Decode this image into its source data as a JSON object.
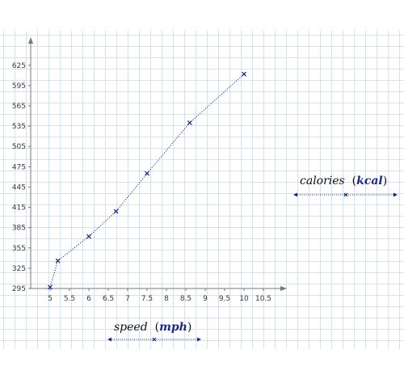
{
  "chart_data": {
    "type": "line",
    "x": [
      5,
      5.2,
      6,
      6.7,
      7.5,
      8.6,
      10
    ],
    "y": [
      297,
      336,
      372,
      409,
      465,
      540,
      612
    ],
    "x_ticks": [
      "5",
      "5.5",
      "6",
      "6.5",
      "7",
      "7.5",
      "8",
      "8.5",
      "9",
      "9.5",
      "10",
      "10.5"
    ],
    "y_ticks": [
      "295",
      "325",
      "355",
      "385",
      "415",
      "445",
      "475",
      "505",
      "535",
      "565",
      "595",
      "625"
    ],
    "xlim": [
      4.6,
      11.1
    ],
    "ylim": [
      285,
      655
    ],
    "grid": true,
    "line_style": "dotted",
    "marker": "x",
    "colors": {
      "series": "#1a2a8c",
      "axis": "#777777",
      "grid": "#d4e1ee"
    },
    "xlabel": {
      "name": "speed",
      "unit": "mph"
    },
    "ylabel": {
      "name": "calories",
      "unit": "kcal"
    }
  }
}
